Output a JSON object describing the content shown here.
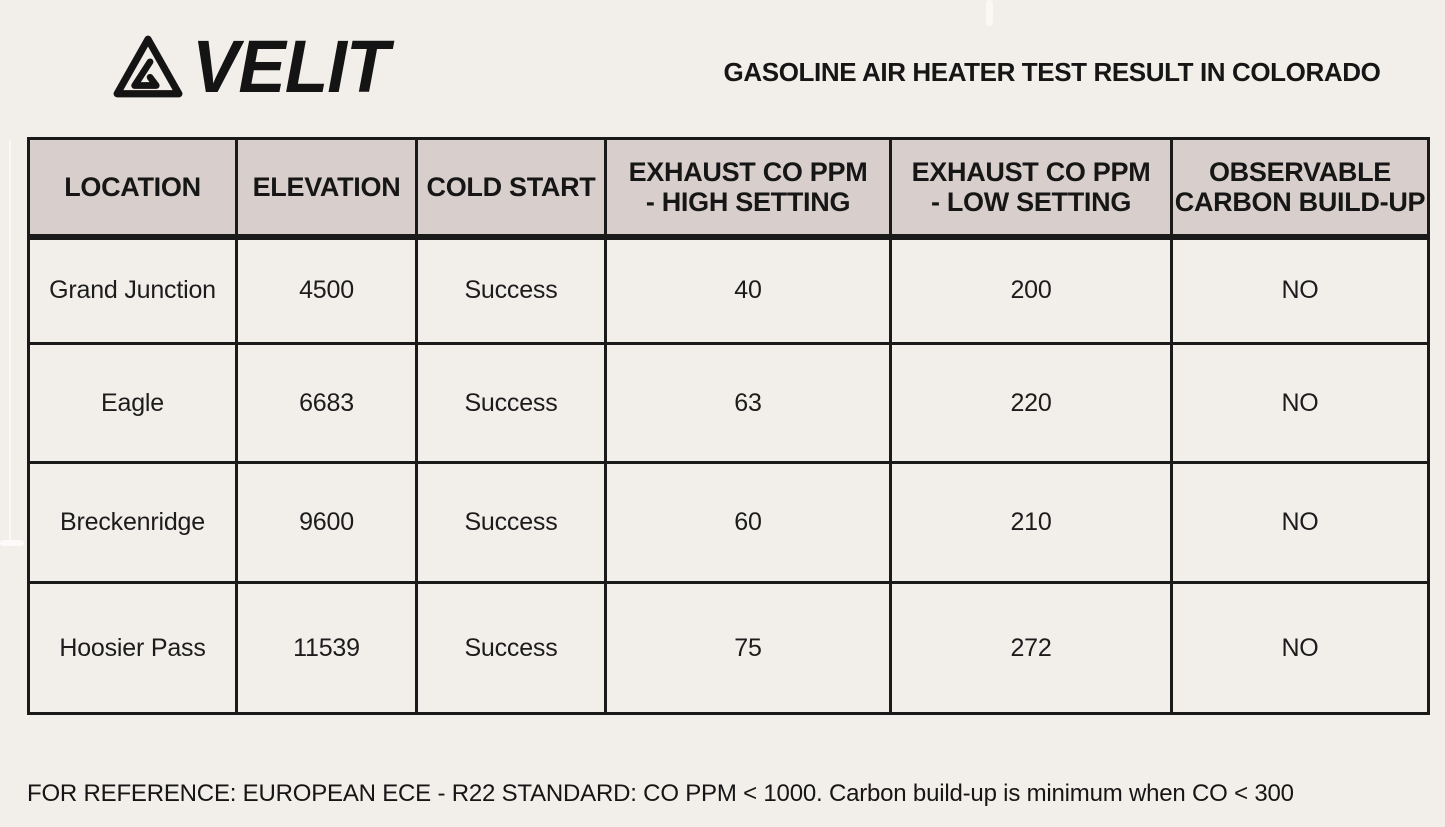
{
  "brand": {
    "name": "VELIT",
    "logo_icon": "triangle-mountain-logo-icon"
  },
  "title": "GASOLINE AIR HEATER TEST RESULT IN COLORADO",
  "table": {
    "columns": [
      "LOCATION",
      "ELEVATION",
      "COLD START",
      "EXHAUST CO PPM\n- HIGH SETTING",
      "EXHAUST CO PPM\n- LOW SETTING",
      "OBSERVABLE\nCARBON BUILD-UP"
    ],
    "rows": [
      [
        "Grand Junction",
        "4500",
        "Success",
        "40",
        "200",
        "NO"
      ],
      [
        "Eagle",
        "6683",
        "Success",
        "63",
        "220",
        "NO"
      ],
      [
        "Breckenridge",
        "9600",
        "Success",
        "60",
        "210",
        "NO"
      ],
      [
        "Hoosier Pass",
        "11539",
        "Success",
        "75",
        "272",
        "NO"
      ]
    ]
  },
  "footer_note": "FOR REFERENCE: EUROPEAN ECE - R22 STANDARD: CO PPM < 1000. Carbon build-up is minimum when CO < 300",
  "colors": {
    "page_background": "#f2eee9",
    "header_background": "#d8cecb",
    "cell_background": "#f2efeb",
    "border": "#1a1a1a",
    "text": "#1c1c1c"
  }
}
